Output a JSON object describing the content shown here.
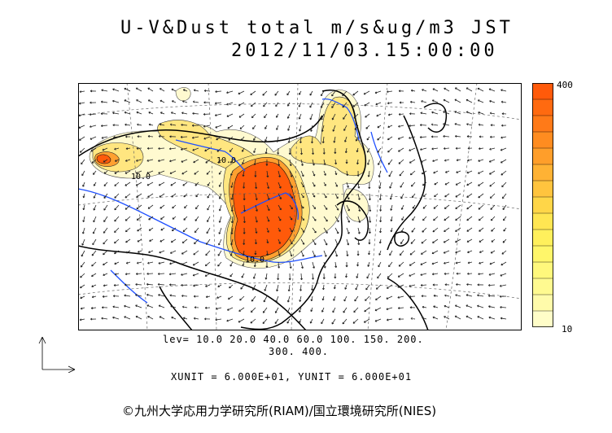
{
  "title_line1": "U-V&Dust total m/s&ug/m3 JST",
  "title_line2": "2012/11/03.15:00:00",
  "colorbar": {
    "max_label": "400",
    "min_label": "10",
    "colors": [
      "#ff5a0a",
      "#ff6a10",
      "#ff7a18",
      "#ff8c20",
      "#ff9e2a",
      "#ffb234",
      "#ffc43e",
      "#ffd648",
      "#ffe652",
      "#fff05c",
      "#fff66a",
      "#fff87c",
      "#fffa90",
      "#fffbaa",
      "#fffdc8"
    ]
  },
  "levels_line1": "lev= 10.0 20.0 40.0 60.0 100. 150. 200.",
  "levels_line2": "300. 400.",
  "units_line": "XUNIT = 6.000E+01, YUNIT = 6.000E+01",
  "credit": "©九州大学応用力学研究所(RIAM)/国立環境研究所(NIES)",
  "colors": {
    "high": "#ff5a0a",
    "mid": "#ffa030",
    "low": "#ffe680",
    "faint": "#fffad0",
    "rivers": "#1e4fff",
    "coast": "#000000"
  }
}
